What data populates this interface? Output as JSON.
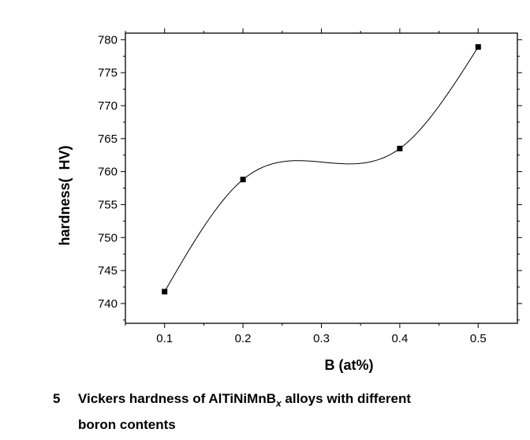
{
  "chart_data": {
    "type": "line",
    "xlabel": "B (at%)",
    "ylabel": "hardness(  HV)",
    "xlim": [
      0.05,
      0.55
    ],
    "ylim": [
      737,
      781
    ],
    "x_ticks": [
      0.1,
      0.2,
      0.3,
      0.4,
      0.5
    ],
    "x_tick_labels": [
      "0.1",
      "0.2",
      "0.3",
      "0.4",
      "0.5"
    ],
    "y_ticks": [
      740,
      745,
      750,
      755,
      760,
      765,
      770,
      775,
      780
    ],
    "y_tick_labels": [
      "740",
      "745",
      "750",
      "755",
      "760",
      "765",
      "770",
      "775",
      "780"
    ],
    "grid": false,
    "series": [
      {
        "x": [
          0.1,
          0.2,
          0.4,
          0.5
        ],
        "values": [
          741.8,
          758.8,
          763.5,
          778.9
        ],
        "marker": "square",
        "line": "spline",
        "color": "#000000"
      }
    ]
  },
  "caption": {
    "number": "5",
    "text_before": "Vickers hardness of AlTiNiMnB",
    "subscript": "x",
    "text_after": " alloys with different",
    "line2": "boron contents"
  }
}
